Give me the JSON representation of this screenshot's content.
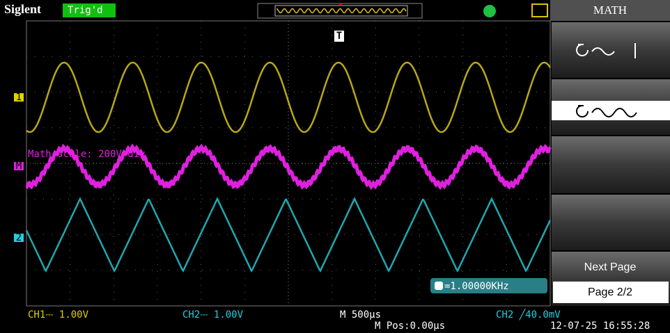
{
  "header": {
    "brand": "Siglent",
    "status": "Trig'd"
  },
  "menu": {
    "title": "MATH",
    "next": "Next Page",
    "page": "Page 2/2"
  },
  "screen": {
    "math_scale": "Math scale: 200V/div",
    "frequency": "=1.00000KHz",
    "channel_markers": [
      "1",
      "M",
      "2"
    ],
    "trigger_marker": "T"
  },
  "footer": {
    "ch1": "CH1⎓ 1.00V",
    "ch2": "CH2⎓ 1.00V",
    "timebase": "M 500µs",
    "position": "M Pos:0.00µs",
    "trigger": "CH2 ╱40.0mV",
    "datetime": "12-07-25 16:55:28"
  }
}
